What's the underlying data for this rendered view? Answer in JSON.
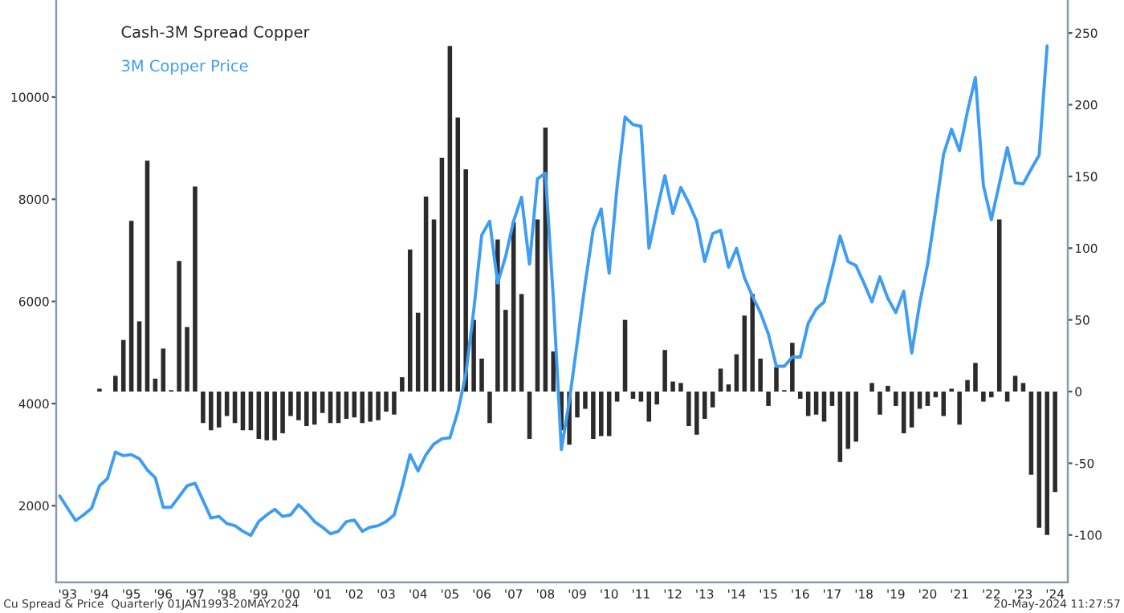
{
  "chart_data": {
    "type": "bar",
    "x": [
      1992.75,
      1993,
      1993.25,
      1993.5,
      1993.75,
      1994,
      1994.25,
      1994.5,
      1994.75,
      1995,
      1995.25,
      1995.5,
      1995.75,
      1996,
      1996.25,
      1996.5,
      1996.75,
      1997,
      1997.25,
      1997.5,
      1997.75,
      1998,
      1998.25,
      1998.5,
      1998.75,
      1999,
      1999.25,
      1999.5,
      1999.75,
      2000,
      2000.25,
      2000.5,
      2000.75,
      2001,
      2001.25,
      2001.5,
      2001.75,
      2002,
      2002.25,
      2002.5,
      2002.75,
      2003,
      2003.25,
      2003.5,
      2003.75,
      2004,
      2004.25,
      2004.5,
      2004.75,
      2005,
      2005.25,
      2005.5,
      2005.75,
      2006,
      2006.25,
      2006.5,
      2006.75,
      2007,
      2007.25,
      2007.5,
      2007.75,
      2008,
      2008.25,
      2008.5,
      2008.75,
      2009,
      2009.25,
      2009.5,
      2009.75,
      2010,
      2010.25,
      2010.5,
      2010.75,
      2011,
      2011.25,
      2011.5,
      2011.75,
      2012,
      2012.25,
      2012.5,
      2012.75,
      2013,
      2013.25,
      2013.5,
      2013.75,
      2014,
      2014.25,
      2014.5,
      2014.75,
      2015,
      2015.25,
      2015.5,
      2015.75,
      2016,
      2016.25,
      2016.5,
      2016.75,
      2017,
      2017.25,
      2017.5,
      2017.75,
      2018,
      2018.25,
      2018.5,
      2018.75,
      2019,
      2019.25,
      2019.5,
      2019.75,
      2020,
      2020.25,
      2020.5,
      2020.75,
      2021,
      2021.25,
      2021.5,
      2021.75,
      2022,
      2022.25,
      2022.5,
      2022.75,
      2023,
      2023.25,
      2023.5,
      2023.75,
      2024
    ],
    "series": [
      {
        "name": "Cash-3M Spread Copper",
        "axis": "y2",
        "color": "#2b2b2b",
        "values": [
          0,
          0,
          0,
          0,
          0,
          2,
          0,
          11,
          36,
          119,
          49,
          161,
          9,
          30,
          1,
          91,
          45,
          143,
          -22,
          -27,
          -25,
          -17,
          -22,
          -27,
          -27,
          -33,
          -34,
          -34,
          -29,
          -17,
          -20,
          -24,
          -23,
          -15,
          -22,
          -22,
          -19,
          -18,
          -22,
          -21,
          -20,
          -14,
          -16,
          10,
          99,
          55,
          136,
          120,
          163,
          241,
          191,
          155,
          50,
          23,
          -22,
          106,
          57,
          118,
          68,
          -33,
          120,
          184,
          28,
          -27,
          -37,
          -18,
          -12,
          -33,
          -31,
          -31,
          -7,
          50,
          -5,
          -7,
          -21,
          -9,
          29,
          7,
          6,
          -24,
          -30,
          -19,
          -11,
          16,
          5,
          26,
          53,
          68,
          23,
          -10,
          17,
          1,
          34,
          -5,
          -17,
          -16,
          -21,
          -10,
          -49,
          -40,
          -35,
          0,
          6,
          -16,
          4,
          -10,
          -29,
          -25,
          -12,
          -10,
          -4,
          -17,
          2,
          -23,
          8,
          20,
          -7,
          -4,
          120,
          -7,
          11,
          6,
          -58,
          -95,
          -100,
          -70
        ]
      },
      {
        "name": "3M Copper Price",
        "type": "line",
        "color": "#3d9df3",
        "values": [
          2190,
          1950,
          1710,
          1820,
          1950,
          2390,
          2530,
          3050,
          2980,
          3000,
          2920,
          2700,
          2550,
          1970,
          1970,
          2180,
          2390,
          2440,
          2100,
          1760,
          1790,
          1650,
          1610,
          1500,
          1420,
          1690,
          1820,
          1930,
          1790,
          1820,
          2020,
          1870,
          1690,
          1580,
          1450,
          1500,
          1690,
          1720,
          1500,
          1580,
          1610,
          1690,
          1820,
          2370,
          3000,
          2680,
          3000,
          3210,
          3310,
          3330,
          3840,
          4570,
          5830,
          7300,
          7570,
          6360,
          6880,
          7570,
          8040,
          6730,
          8400,
          8510,
          6040,
          3100,
          4050,
          5200,
          6360,
          7410,
          7810,
          6550,
          8250,
          9610,
          9460,
          9430,
          7040,
          7780,
          8460,
          7720,
          8230,
          7930,
          7570,
          6780,
          7330,
          7390,
          6670,
          7040,
          6460,
          6100,
          5780,
          5360,
          4730,
          4730,
          4910,
          4910,
          5570,
          5850,
          5990,
          6620,
          7280,
          6780,
          6700,
          6360,
          5990,
          6480,
          6060,
          5780,
          6200,
          4990,
          5960,
          6730,
          7780,
          8880,
          9370,
          8950,
          9720,
          10380,
          8270,
          7600,
          8300,
          9010,
          8320,
          8300,
          8590,
          8860,
          11000,
          null
        ]
      }
    ],
    "xlim": [
      1992.64,
      2024.4
    ],
    "xticks": [
      {
        "value": 1993,
        "label": "'93"
      },
      {
        "value": 1994,
        "label": "'94"
      },
      {
        "value": 1995,
        "label": "'95"
      },
      {
        "value": 1996,
        "label": "'96"
      },
      {
        "value": 1997,
        "label": "'97"
      },
      {
        "value": 1998,
        "label": "'98"
      },
      {
        "value": 1999,
        "label": "'99"
      },
      {
        "value": 2000,
        "label": "'00"
      },
      {
        "value": 2001,
        "label": "'01"
      },
      {
        "value": 2002,
        "label": "'02"
      },
      {
        "value": 2003,
        "label": "'03"
      },
      {
        "value": 2004,
        "label": "'04"
      },
      {
        "value": 2005,
        "label": "'05"
      },
      {
        "value": 2006,
        "label": "'06"
      },
      {
        "value": 2007,
        "label": "'07"
      },
      {
        "value": 2008,
        "label": "'08"
      },
      {
        "value": 2009,
        "label": "'09"
      },
      {
        "value": 2010,
        "label": "'10"
      },
      {
        "value": 2011,
        "label": "'11"
      },
      {
        "value": 2012,
        "label": "'12"
      },
      {
        "value": 2013,
        "label": "'13"
      },
      {
        "value": 2014,
        "label": "'14"
      },
      {
        "value": 2015,
        "label": "'15"
      },
      {
        "value": 2016,
        "label": "'16"
      },
      {
        "value": 2017,
        "label": "'17"
      },
      {
        "value": 2018,
        "label": "'18"
      },
      {
        "value": 2019,
        "label": "'19"
      },
      {
        "value": 2020,
        "label": "'20"
      },
      {
        "value": 2021,
        "label": "'21"
      },
      {
        "value": 2022,
        "label": "'22"
      },
      {
        "value": 2023,
        "label": "'23"
      },
      {
        "value": 2024,
        "label": "'24"
      }
    ],
    "ylim": [
      500,
      11900
    ],
    "yticks": [
      2000,
      4000,
      6000,
      8000,
      10000
    ],
    "y2lim": [
      -133,
      273
    ],
    "y2ticks": [
      -100,
      -50,
      0,
      50,
      100,
      150,
      200,
      250
    ],
    "legend": "top left",
    "grid": false,
    "annotations": [
      "Cu Spread & Price  Quarterly 01JAN1993-20MAY2024",
      "20-May-2024 11:27:57"
    ]
  }
}
